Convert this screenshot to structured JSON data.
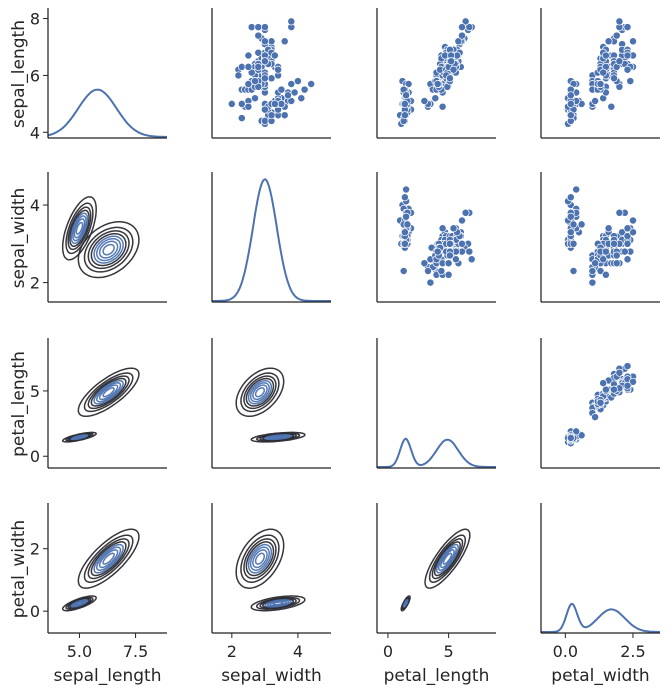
{
  "chart_data": {
    "type": "pairgrid",
    "variables": [
      "sepal_length",
      "sepal_width",
      "petal_length",
      "petal_width"
    ],
    "colors": {
      "point": "#4c72b0",
      "point_edge": "#ffffff",
      "kde_diag": "#4c72b0",
      "contour_dark": "#2b2b33",
      "contour_light": "#4c72b0",
      "axis": "#222222"
    },
    "grid": false,
    "layout": {
      "diag": "kde",
      "upper": "scatter",
      "lower": "kde_contour"
    },
    "axes": {
      "sepal_length": {
        "lim": [
          3.8,
          8.3
        ],
        "ticks": [
          4,
          6,
          8
        ],
        "bottom_lim": [
          3.6,
          8.9
        ],
        "bottom_ticks": [
          5.0,
          7.5
        ],
        "bottom_ticklabels": [
          "5.0",
          "7.5"
        ]
      },
      "sepal_width": {
        "lim": [
          1.5,
          4.8
        ],
        "ticks": [
          2,
          4
        ],
        "bottom_lim": [
          1.4,
          5.0
        ],
        "bottom_ticks": [
          2,
          4
        ]
      },
      "petal_length": {
        "lim": [
          -0.9,
          8.9
        ],
        "ticks": [
          0,
          5
        ],
        "bottom_lim": [
          -0.9,
          8.9
        ],
        "bottom_ticks": [
          0,
          5
        ]
      },
      "petal_width": {
        "lim": [
          -0.7,
          3.4
        ],
        "ticks": [
          0,
          2
        ],
        "bottom_lim": [
          -0.9,
          3.5
        ],
        "bottom_ticks": [
          0.0,
          2.5
        ],
        "bottom_ticklabels": [
          "0.0",
          "2.5"
        ]
      }
    },
    "diag_kde_peaks": {
      "sepal_length": [
        {
          "x": 5.8,
          "sd": 0.85,
          "w": 1.0
        }
      ],
      "sepal_width": [
        {
          "x": 3.0,
          "sd": 0.36,
          "w": 1.0
        }
      ],
      "petal_length": [
        {
          "x": 1.46,
          "sd": 0.45,
          "w": 0.34
        },
        {
          "x": 4.9,
          "sd": 0.9,
          "w": 0.66
        }
      ],
      "petal_width": [
        {
          "x": 0.24,
          "sd": 0.2,
          "w": 0.33
        },
        {
          "x": 1.7,
          "sd": 0.5,
          "w": 0.67
        }
      ]
    },
    "kde_clusters": [
      {
        "name": "cluster_small",
        "center": {
          "sepal_length": 5.0,
          "sepal_width": 3.4,
          "petal_length": 1.46,
          "petal_width": 0.25
        },
        "sd": {
          "sepal_length": 0.35,
          "sepal_width": 0.38,
          "petal_length": 0.17,
          "petal_width": 0.11
        }
      },
      {
        "name": "cluster_large",
        "center": {
          "sepal_length": 6.3,
          "sepal_width": 2.85,
          "petal_length": 4.9,
          "petal_width": 1.68
        },
        "sd": {
          "sepal_length": 0.6,
          "sepal_width": 0.32,
          "petal_length": 0.82,
          "petal_width": 0.42
        }
      }
    ],
    "points": {
      "sepal_length": [
        5.1,
        4.9,
        4.7,
        4.6,
        5.0,
        5.4,
        4.6,
        5.0,
        4.4,
        4.9,
        5.4,
        4.8,
        4.8,
        4.3,
        5.8,
        5.7,
        5.4,
        5.1,
        5.7,
        5.1,
        5.4,
        5.1,
        4.6,
        5.1,
        4.8,
        5.0,
        5.0,
        5.2,
        5.2,
        4.7,
        4.8,
        5.4,
        5.2,
        5.5,
        4.9,
        5.0,
        5.5,
        4.9,
        4.4,
        5.1,
        5.0,
        4.5,
        4.4,
        5.0,
        5.1,
        4.8,
        5.1,
        4.6,
        5.3,
        5.0,
        7.0,
        6.4,
        6.9,
        5.5,
        6.5,
        5.7,
        6.3,
        4.9,
        6.6,
        5.2,
        5.0,
        5.9,
        6.0,
        6.1,
        5.6,
        6.7,
        5.6,
        5.8,
        6.2,
        5.6,
        5.9,
        6.1,
        6.3,
        6.1,
        6.4,
        6.6,
        6.8,
        6.7,
        6.0,
        5.7,
        5.5,
        5.5,
        5.8,
        6.0,
        5.4,
        6.0,
        6.7,
        6.3,
        5.6,
        5.5,
        5.5,
        6.1,
        5.8,
        5.0,
        5.6,
        5.7,
        5.7,
        6.2,
        5.1,
        5.7,
        6.3,
        5.8,
        7.1,
        6.3,
        6.5,
        7.6,
        4.9,
        7.3,
        6.7,
        7.2,
        6.5,
        6.4,
        6.8,
        5.7,
        5.8,
        6.4,
        6.5,
        7.7,
        7.7,
        6.0,
        6.9,
        5.6,
        7.7,
        6.3,
        6.7,
        7.2,
        6.2,
        6.1,
        6.4,
        7.2,
        7.4,
        7.9,
        6.4,
        6.3,
        6.1,
        7.7,
        6.3,
        6.4,
        6.0,
        6.9,
        6.7,
        6.9,
        5.8,
        6.8,
        6.7,
        6.7,
        6.3,
        6.5,
        6.2,
        5.9
      ],
      "sepal_width": [
        3.5,
        3.0,
        3.2,
        3.1,
        3.6,
        3.9,
        3.4,
        3.4,
        2.9,
        3.1,
        3.7,
        3.4,
        3.0,
        3.0,
        4.0,
        4.4,
        3.9,
        3.5,
        3.8,
        3.8,
        3.4,
        3.7,
        3.6,
        3.3,
        3.4,
        3.0,
        3.4,
        3.5,
        3.4,
        3.2,
        3.1,
        3.4,
        4.1,
        4.2,
        3.1,
        3.2,
        3.5,
        3.6,
        3.0,
        3.4,
        3.5,
        2.3,
        3.2,
        3.5,
        3.8,
        3.0,
        3.8,
        3.2,
        3.7,
        3.3,
        3.2,
        3.2,
        3.1,
        2.3,
        2.8,
        2.8,
        3.3,
        2.4,
        2.9,
        2.7,
        2.0,
        3.0,
        2.2,
        2.9,
        2.9,
        3.1,
        3.0,
        2.7,
        2.2,
        2.5,
        3.2,
        2.8,
        2.5,
        2.8,
        2.9,
        3.0,
        2.8,
        3.0,
        2.9,
        2.6,
        2.4,
        2.4,
        2.7,
        2.7,
        3.0,
        3.4,
        3.1,
        2.3,
        3.0,
        2.5,
        2.6,
        3.0,
        2.6,
        2.3,
        2.7,
        3.0,
        2.9,
        2.9,
        2.5,
        2.8,
        3.3,
        2.7,
        3.0,
        2.9,
        3.0,
        3.0,
        2.5,
        2.9,
        2.5,
        3.6,
        3.2,
        2.7,
        3.0,
        2.5,
        2.8,
        3.2,
        3.0,
        3.8,
        2.6,
        2.2,
        3.2,
        2.8,
        2.8,
        2.7,
        3.3,
        3.2,
        2.8,
        3.0,
        2.8,
        3.0,
        2.8,
        3.8,
        2.8,
        2.8,
        2.6,
        3.0,
        3.4,
        3.1,
        3.0,
        3.1,
        3.1,
        3.1,
        2.7,
        3.2,
        3.3,
        3.0,
        2.5,
        3.0,
        3.4,
        3.0
      ],
      "petal_length": [
        1.4,
        1.4,
        1.3,
        1.5,
        1.4,
        1.7,
        1.4,
        1.5,
        1.4,
        1.5,
        1.5,
        1.6,
        1.4,
        1.1,
        1.2,
        1.5,
        1.3,
        1.4,
        1.7,
        1.5,
        1.7,
        1.5,
        1.0,
        1.7,
        1.9,
        1.6,
        1.6,
        1.5,
        1.4,
        1.6,
        1.6,
        1.5,
        1.5,
        1.4,
        1.5,
        1.2,
        1.3,
        1.4,
        1.3,
        1.5,
        1.3,
        1.3,
        1.3,
        1.6,
        1.9,
        1.4,
        1.6,
        1.4,
        1.5,
        1.4,
        4.7,
        4.5,
        4.9,
        4.0,
        4.6,
        4.5,
        4.7,
        3.3,
        4.6,
        3.9,
        3.5,
        4.2,
        4.0,
        4.7,
        3.6,
        4.4,
        4.5,
        4.1,
        4.5,
        3.9,
        4.8,
        4.0,
        4.9,
        4.7,
        4.3,
        4.4,
        4.8,
        5.0,
        4.5,
        3.5,
        3.8,
        3.7,
        3.9,
        5.1,
        4.5,
        4.5,
        4.7,
        4.4,
        4.1,
        4.0,
        4.4,
        4.6,
        4.0,
        3.3,
        4.2,
        4.2,
        4.2,
        4.3,
        3.0,
        4.1,
        6.0,
        5.1,
        5.9,
        5.6,
        5.8,
        6.6,
        4.5,
        6.3,
        5.8,
        6.1,
        5.1,
        5.3,
        5.5,
        5.0,
        5.1,
        5.3,
        5.5,
        6.7,
        6.9,
        5.0,
        5.7,
        4.9,
        6.7,
        4.9,
        5.7,
        6.0,
        4.8,
        4.9,
        5.6,
        5.8,
        6.1,
        6.4,
        5.6,
        5.1,
        5.6,
        6.1,
        5.6,
        5.5,
        4.8,
        5.4,
        5.6,
        5.1,
        5.1,
        5.9,
        5.7,
        5.2,
        5.0,
        5.2,
        5.4,
        5.1
      ],
      "petal_width": [
        0.2,
        0.2,
        0.2,
        0.2,
        0.2,
        0.4,
        0.3,
        0.2,
        0.2,
        0.1,
        0.2,
        0.2,
        0.1,
        0.1,
        0.2,
        0.4,
        0.4,
        0.3,
        0.3,
        0.3,
        0.2,
        0.4,
        0.2,
        0.5,
        0.2,
        0.2,
        0.4,
        0.2,
        0.2,
        0.2,
        0.2,
        0.4,
        0.1,
        0.2,
        0.2,
        0.2,
        0.2,
        0.1,
        0.2,
        0.2,
        0.3,
        0.3,
        0.2,
        0.6,
        0.4,
        0.3,
        0.2,
        0.2,
        0.2,
        0.2,
        1.4,
        1.5,
        1.5,
        1.3,
        1.5,
        1.3,
        1.6,
        1.0,
        1.3,
        1.4,
        1.0,
        1.5,
        1.0,
        1.4,
        1.3,
        1.4,
        1.5,
        1.0,
        1.5,
        1.1,
        1.8,
        1.3,
        1.5,
        1.2,
        1.3,
        1.4,
        1.4,
        1.7,
        1.5,
        1.0,
        1.1,
        1.0,
        1.2,
        1.6,
        1.5,
        1.6,
        1.5,
        1.3,
        1.3,
        1.3,
        1.2,
        1.4,
        1.2,
        1.0,
        1.3,
        1.2,
        1.3,
        1.3,
        1.1,
        1.3,
        2.5,
        1.9,
        2.1,
        1.8,
        2.2,
        2.1,
        1.7,
        1.8,
        1.8,
        2.5,
        2.0,
        1.9,
        2.1,
        2.0,
        2.4,
        2.3,
        1.8,
        2.2,
        2.3,
        1.5,
        2.3,
        2.0,
        2.0,
        1.8,
        2.1,
        1.8,
        1.8,
        1.8,
        2.1,
        1.6,
        1.9,
        2.0,
        2.2,
        1.5,
        1.4,
        2.3,
        2.4,
        1.8,
        1.8,
        2.1,
        2.4,
        2.3,
        1.9,
        2.3,
        2.5,
        2.3,
        1.9,
        2.0,
        2.3,
        1.8
      ]
    }
  }
}
